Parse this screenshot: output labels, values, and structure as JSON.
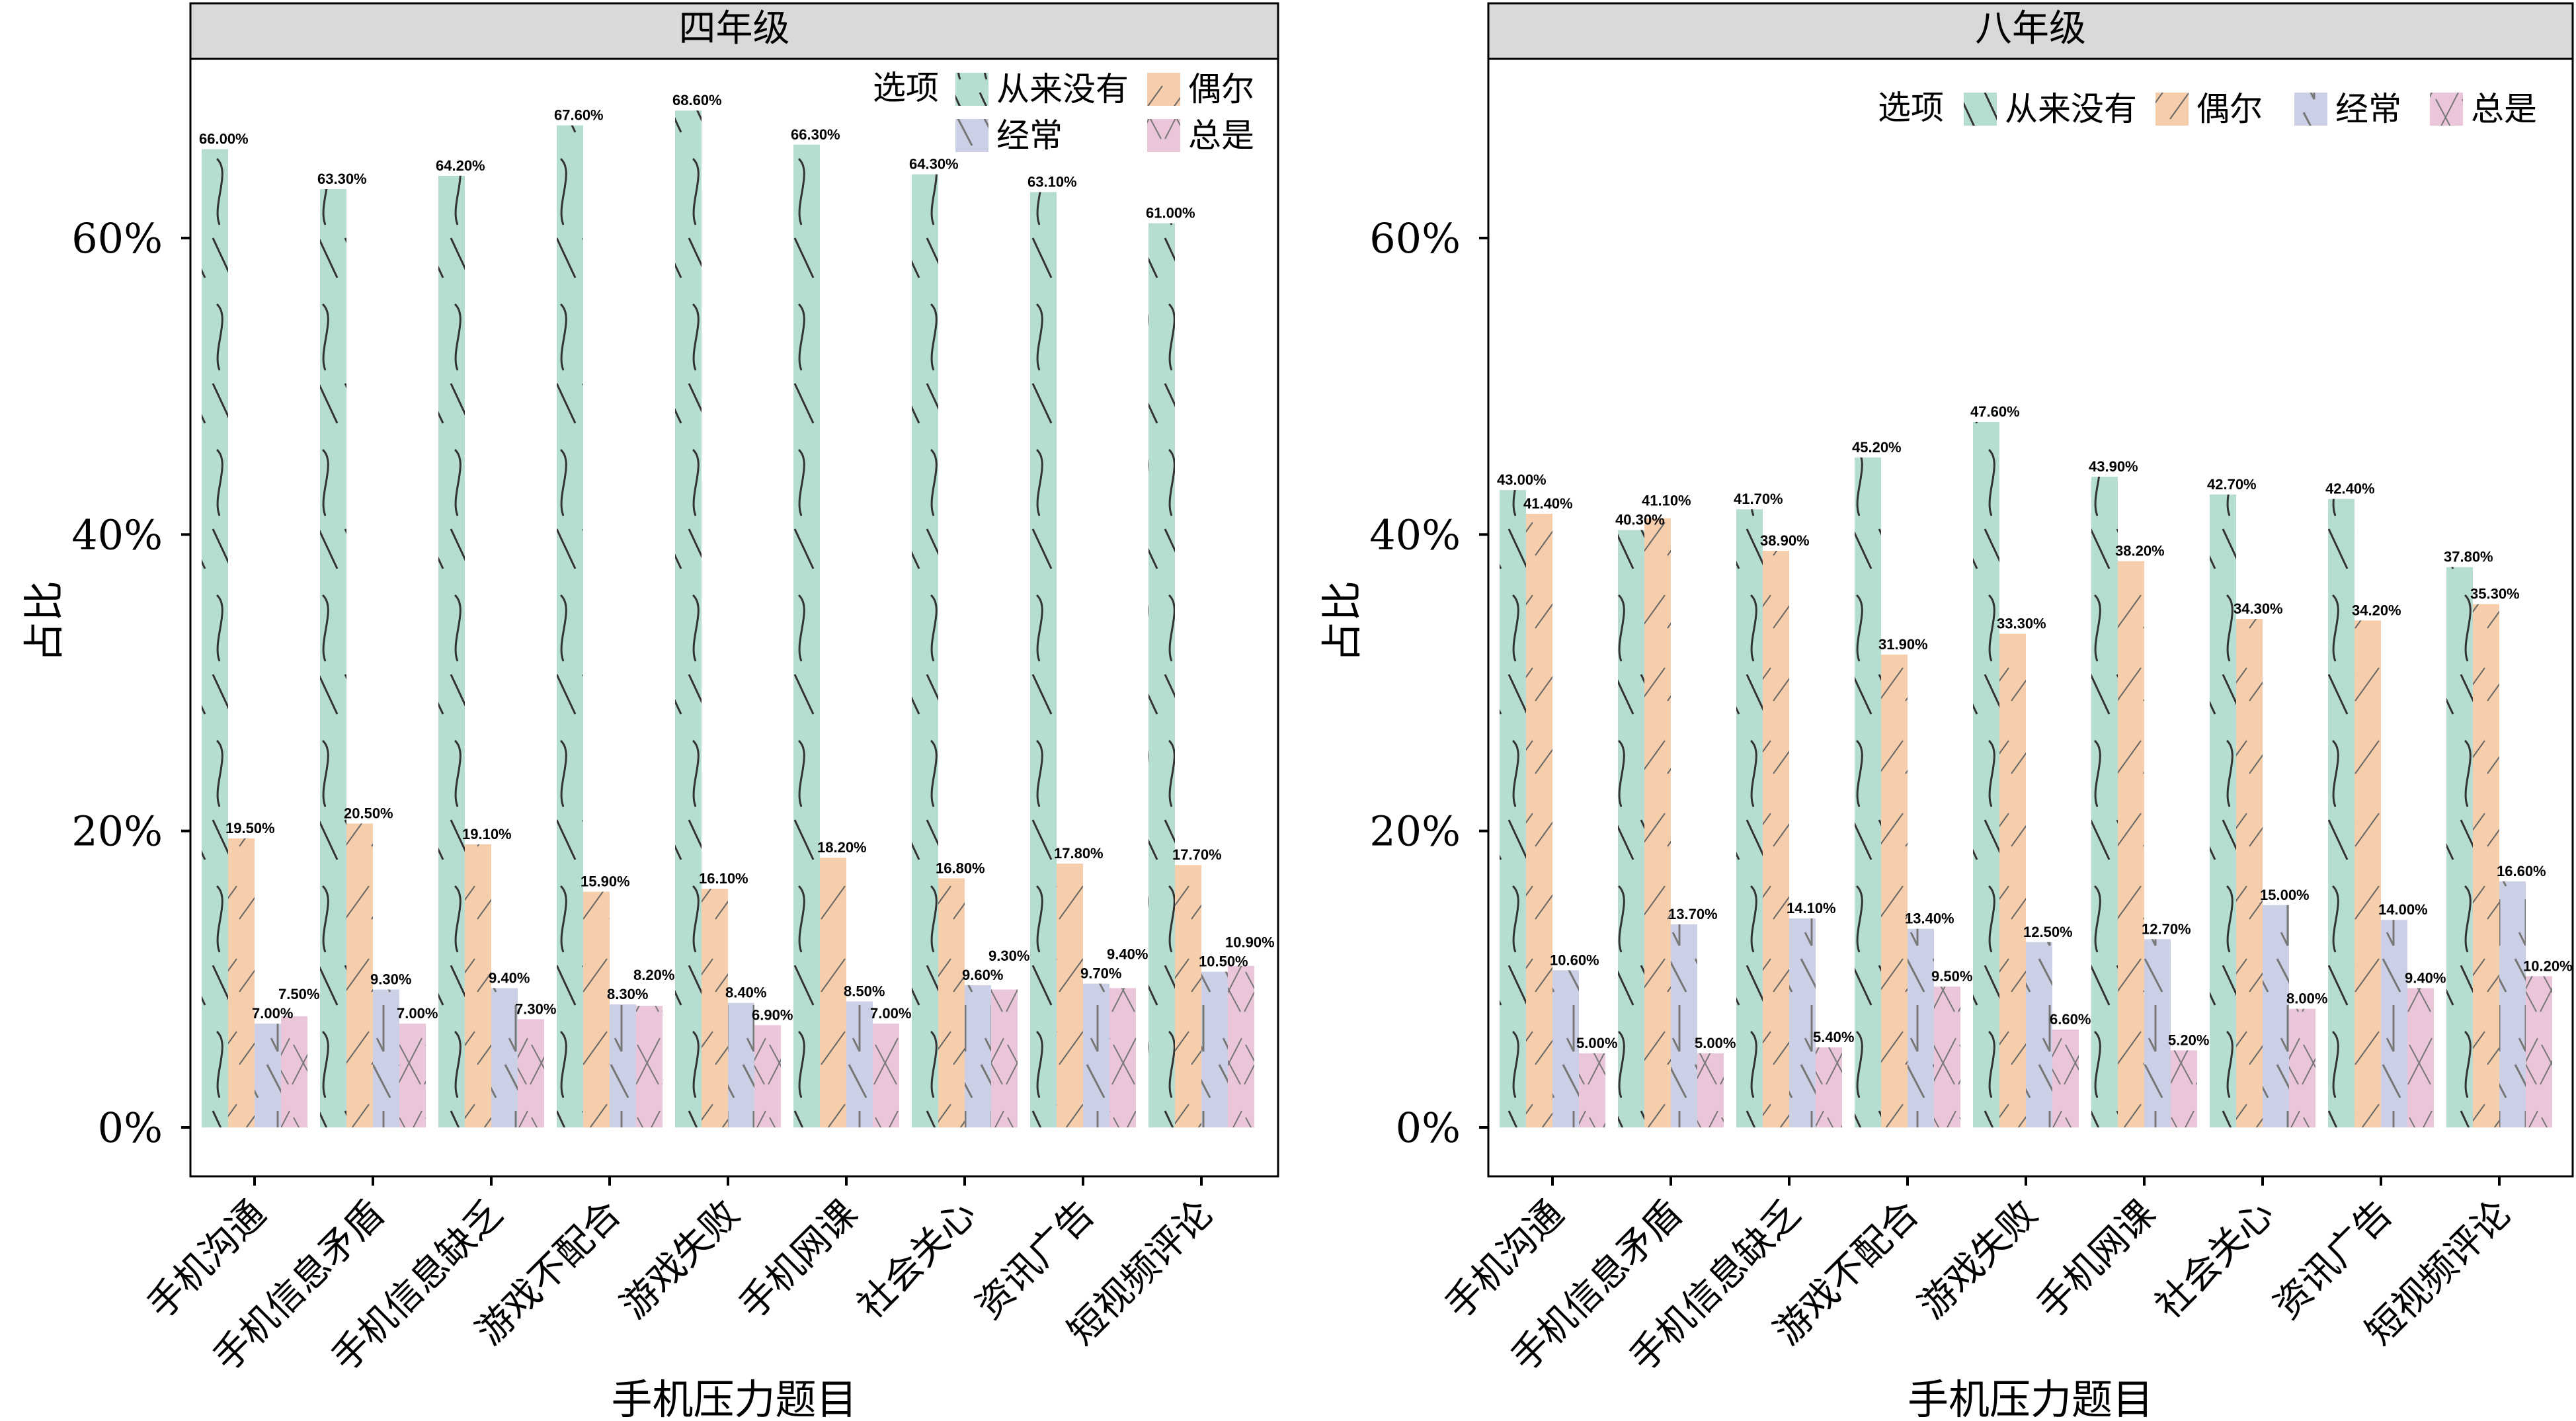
{
  "chart_data": [
    {
      "type": "bar",
      "title": "四年级",
      "xlabel": "手机压力题目",
      "ylabel": "占比",
      "ylim": [
        0,
        70
      ],
      "yticks": [
        "0%",
        "20%",
        "40%",
        "60%"
      ],
      "ytick_values": [
        0,
        20,
        40,
        60
      ],
      "legend_title": "选项",
      "legend_placement": "top-right",
      "categories": [
        "手机沟通",
        "手机信息矛盾",
        "手机信息缺乏",
        "游戏不配合",
        "游戏失败",
        "手机网课",
        "社会关心",
        "资讯广告",
        "短视频评论"
      ],
      "series": [
        {
          "name": "从来没有",
          "color": "#b6ddd2",
          "values": [
            66.0,
            63.3,
            64.2,
            67.6,
            68.6,
            66.3,
            64.3,
            63.1,
            61.0
          ],
          "labels": [
            "66.00%",
            "63.30%",
            "64.20%",
            "67.60%",
            "68.60%",
            "66.30%",
            "64.30%",
            "63.10%",
            "61.00%"
          ]
        },
        {
          "name": "偶尔",
          "color": "#f7ceab",
          "values": [
            19.5,
            20.5,
            19.1,
            15.9,
            16.1,
            18.2,
            16.8,
            17.8,
            17.7
          ],
          "labels": [
            "19.50%",
            "20.50%",
            "19.10%",
            "15.90%",
            "16.10%",
            "18.20%",
            "16.80%",
            "17.80%",
            "17.70%"
          ]
        },
        {
          "name": "经常",
          "color": "#cbd0e6",
          "values": [
            7.0,
            9.3,
            9.4,
            8.3,
            8.4,
            8.5,
            9.6,
            9.7,
            10.5
          ],
          "labels": [
            "7.00%",
            "9.30%",
            "9.40%",
            "8.30%",
            "8.40%",
            "8.50%",
            "9.60%",
            "9.70%",
            "10.50%"
          ]
        },
        {
          "name": "总是",
          "color": "#ebc5d9",
          "values": [
            7.5,
            7.0,
            7.3,
            8.2,
            6.9,
            7.0,
            9.3,
            9.4,
            10.9
          ],
          "labels": [
            "7.50%",
            "7.00%",
            "7.30%",
            "8.20%",
            "6.90%",
            "7.00%",
            "9.30%",
            "9.40%",
            "10.90%"
          ]
        }
      ]
    },
    {
      "type": "bar",
      "title": "八年级",
      "xlabel": "手机压力题目",
      "ylabel": "占比",
      "ylim": [
        0,
        70
      ],
      "yticks": [
        "0%",
        "20%",
        "40%",
        "60%"
      ],
      "ytick_values": [
        0,
        20,
        40,
        60
      ],
      "legend_title": "选项",
      "legend_placement": "top-right",
      "categories": [
        "手机沟通",
        "手机信息矛盾",
        "手机信息缺乏",
        "游戏不配合",
        "游戏失败",
        "手机网课",
        "社会关心",
        "资讯广告",
        "短视频评论"
      ],
      "series": [
        {
          "name": "从来没有",
          "color": "#b6ddd2",
          "values": [
            43.0,
            40.3,
            41.7,
            45.2,
            47.6,
            43.9,
            42.7,
            42.4,
            37.8
          ],
          "labels": [
            "43.00%",
            "40.30%",
            "41.70%",
            "45.20%",
            "47.60%",
            "43.90%",
            "42.70%",
            "42.40%",
            "37.80%"
          ]
        },
        {
          "name": "偶尔",
          "color": "#f7ceab",
          "values": [
            41.4,
            41.1,
            38.9,
            31.9,
            33.3,
            38.2,
            34.3,
            34.2,
            35.3
          ],
          "labels": [
            "41.40%",
            "41.10%",
            "38.90%",
            "31.90%",
            "33.30%",
            "38.20%",
            "34.30%",
            "34.20%",
            "35.30%"
          ]
        },
        {
          "name": "经常",
          "color": "#cbd0e6",
          "values": [
            10.6,
            13.7,
            14.1,
            13.4,
            12.5,
            12.7,
            15.0,
            14.0,
            16.6
          ],
          "labels": [
            "10.60%",
            "13.70%",
            "14.10%",
            "13.40%",
            "12.50%",
            "12.70%",
            "15.00%",
            "14.00%",
            "16.60%"
          ]
        },
        {
          "name": "总是",
          "color": "#ebc5d9",
          "values": [
            5.0,
            5.0,
            5.4,
            9.5,
            6.6,
            5.2,
            8.0,
            9.4,
            10.2
          ],
          "labels": [
            "5.00%",
            "5.00%",
            "5.40%",
            "9.50%",
            "6.60%",
            "5.20%",
            "8.00%",
            "9.40%",
            "10.20%"
          ]
        }
      ]
    }
  ]
}
